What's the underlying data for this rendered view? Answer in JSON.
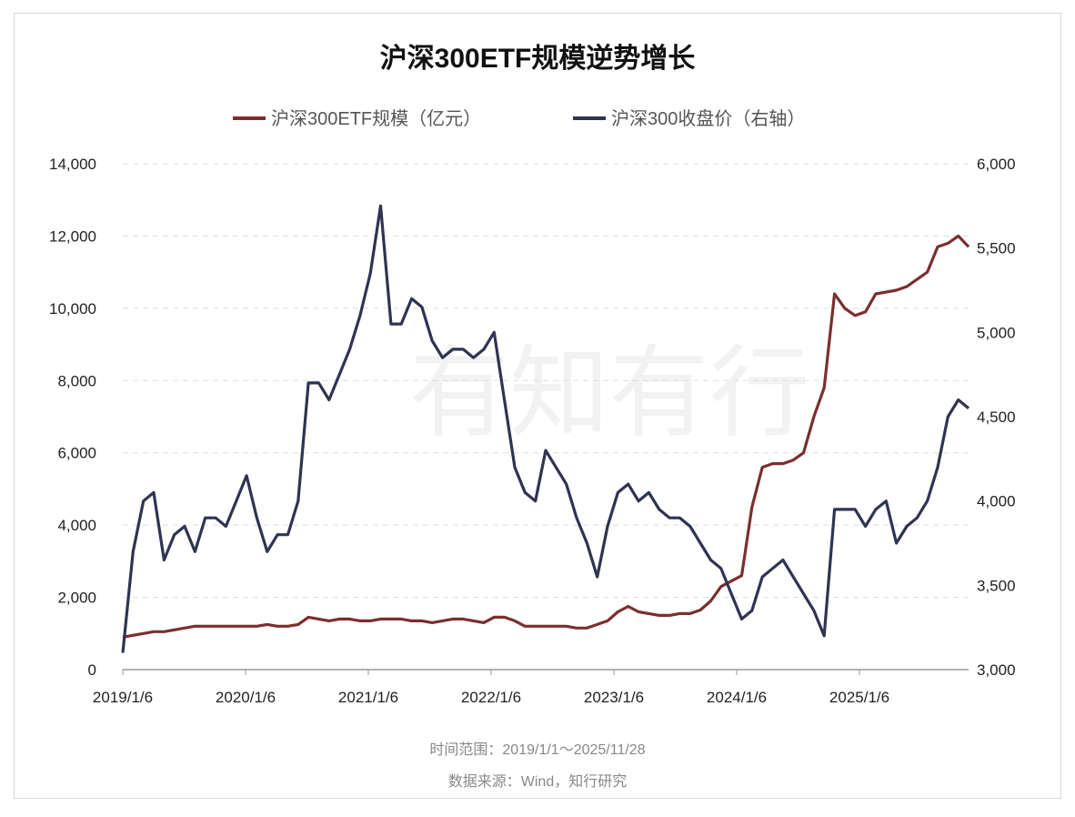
{
  "chart_data": {
    "type": "line",
    "title": "沪深300ETF规模逆势增长",
    "watermark": "有知有行",
    "x_ticks": [
      "2019/1/6",
      "2020/1/6",
      "2021/1/6",
      "2022/1/6",
      "2023/1/6",
      "2024/1/6",
      "2025/1/6"
    ],
    "x_start": "2019-01",
    "x_step": "month",
    "left_axis": {
      "ylim": [
        0,
        14000
      ],
      "ticks": [
        "0",
        "2,000",
        "4,000",
        "6,000",
        "8,000",
        "10,000",
        "12,000",
        "14,000"
      ]
    },
    "right_axis": {
      "ylim": [
        3000,
        6000
      ],
      "ticks": [
        "3,000",
        "3,500",
        "4,000",
        "4,500",
        "5,000",
        "5,500",
        "6,000"
      ]
    },
    "grid": true,
    "legend_position": "top-center",
    "series": [
      {
        "name": "沪深300ETF规模（亿元）",
        "axis": "left",
        "color": "#7b2e2e",
        "values": [
          900,
          950,
          1000,
          1050,
          1050,
          1100,
          1150,
          1200,
          1200,
          1200,
          1200,
          1200,
          1200,
          1200,
          1250,
          1200,
          1200,
          1250,
          1450,
          1400,
          1350,
          1400,
          1400,
          1350,
          1350,
          1400,
          1400,
          1400,
          1350,
          1350,
          1300,
          1350,
          1400,
          1400,
          1350,
          1300,
          1450,
          1450,
          1350,
          1200,
          1200,
          1200,
          1200,
          1200,
          1150,
          1150,
          1250,
          1350,
          1600,
          1750,
          1600,
          1550,
          1500,
          1500,
          1550,
          1550,
          1650,
          1900,
          2300,
          2450,
          2600,
          4500,
          5600,
          5700,
          5700,
          5800,
          6000,
          7000,
          7800,
          10400,
          10000,
          9800,
          9900,
          10400,
          10450,
          10500,
          10600,
          10800,
          11000,
          11700,
          11800,
          12000,
          11700
        ]
      },
      {
        "name": "沪深300收盘价（右轴）",
        "axis": "right",
        "color": "#2e3452",
        "values": [
          3100,
          3700,
          4000,
          4050,
          3650,
          3800,
          3850,
          3700,
          3900,
          3900,
          3850,
          4000,
          4150,
          3900,
          3700,
          3800,
          3800,
          4000,
          4700,
          4700,
          4600,
          4750,
          4900,
          5100,
          5350,
          5750,
          5050,
          5050,
          5200,
          5150,
          4950,
          4850,
          4900,
          4900,
          4850,
          4900,
          5000,
          4600,
          4200,
          4050,
          4000,
          4300,
          4200,
          4100,
          3900,
          3750,
          3550,
          3850,
          4050,
          4100,
          4000,
          4050,
          3950,
          3900,
          3900,
          3850,
          3750,
          3650,
          3600,
          3450,
          3300,
          3350,
          3550,
          3600,
          3650,
          3550,
          3450,
          3350,
          3200,
          3950,
          3950,
          3950,
          3850,
          3950,
          4000,
          3750,
          3850,
          3900,
          4000,
          4200,
          4500,
          4600,
          4550
        ]
      }
    ],
    "footer": [
      "时间范围：2019/1/1～2025/11/28",
      "数据来源：Wind，知行研究"
    ]
  }
}
